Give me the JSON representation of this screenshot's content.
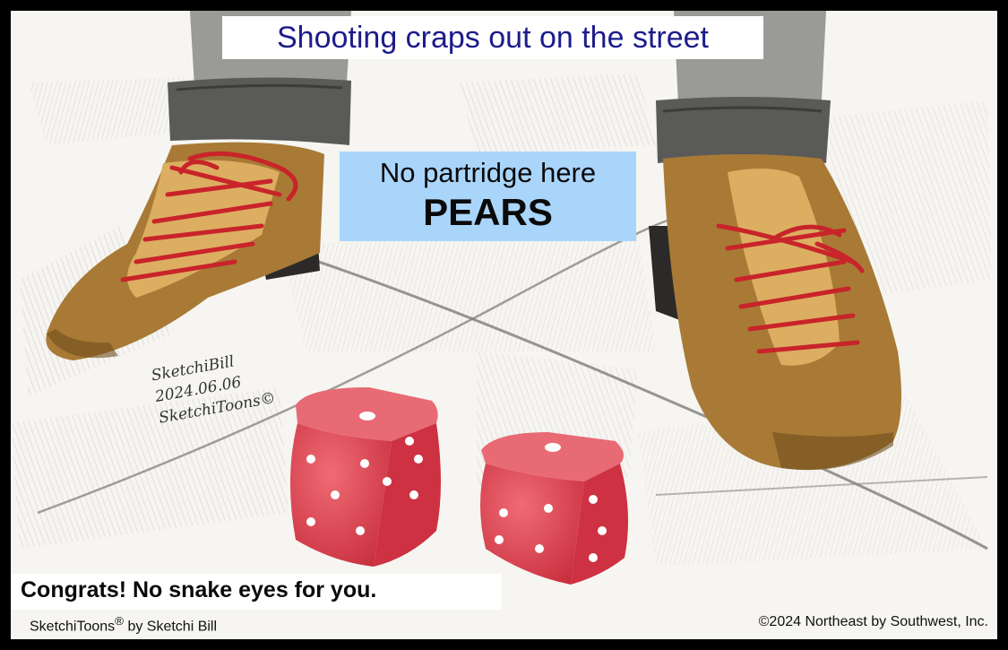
{
  "title": "Shooting craps out on the street",
  "sign": {
    "line1": "No partridge here",
    "line2": "PEARS"
  },
  "punchline": "Congrats! No snake eyes for you.",
  "credits": {
    "left_brand": "SketchiToons",
    "left_mark": "®",
    "left_rest": " by Sketchi Bill",
    "right": "©2024 Northeast by Southwest, Inc."
  },
  "signature": {
    "name": "SketchiBill",
    "date": "2024.06.06",
    "brand": "SketchiToons©"
  },
  "dice": [
    {
      "name": "left-die",
      "top_pips": 1,
      "left_face_pips": 5,
      "right_face_pips": 4
    },
    {
      "name": "right-die",
      "top_pips": 1,
      "left_face_pips": 4,
      "right_face_pips": 3
    }
  ],
  "colors": {
    "frame": "#000000",
    "paper": "#f6f5f1",
    "title_text": "#1c1c8c",
    "sign_background": "#aad5fb",
    "shoe_leather": "#a87a36",
    "shoe_tongue": "#dcae62",
    "laces": "#c8242a",
    "trousers": "#8a8a86",
    "dice": "#d83b4a"
  }
}
